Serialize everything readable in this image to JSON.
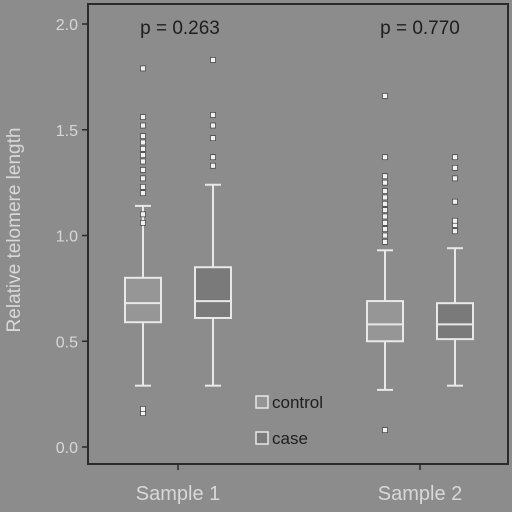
{
  "chart_data": {
    "type": "box",
    "ylabel": "Relative telomere length",
    "ylim": [
      0.0,
      2.0
    ],
    "yticks": [
      "0.0",
      "0.5",
      "1.0",
      "1.5",
      "2.0"
    ],
    "categories": [
      "Sample 1",
      "Sample 2"
    ],
    "annotations": [
      "p = 0.263",
      "p = 0.770"
    ],
    "legend": {
      "position": "bottom-center",
      "entries": [
        "control",
        "case"
      ]
    },
    "colors": {
      "background": "#8c8c8c",
      "control": "#969696",
      "case": "#7a7a7a",
      "stroke": "#e8e8e8"
    },
    "series": [
      {
        "name": "control",
        "boxes": [
          {
            "category": "Sample 1",
            "whisker_low": 0.29,
            "q1": 0.59,
            "median": 0.68,
            "q3": 0.8,
            "whisker_high": 1.14,
            "outliers": [
              0.16,
              0.18,
              1.06,
              1.1,
              1.2,
              1.23,
              1.27,
              1.31,
              1.35,
              1.38,
              1.41,
              1.44,
              1.47,
              1.52,
              1.56,
              1.79
            ]
          },
          {
            "category": "Sample 2",
            "whisker_low": 0.27,
            "q1": 0.5,
            "median": 0.58,
            "q3": 0.69,
            "whisker_high": 0.93,
            "outliers": [
              0.08,
              0.97,
              1.0,
              1.03,
              1.06,
              1.09,
              1.12,
              1.15,
              1.18,
              1.21,
              1.25,
              1.28,
              1.37,
              1.66
            ]
          }
        ]
      },
      {
        "name": "case",
        "boxes": [
          {
            "category": "Sample 1",
            "whisker_low": 0.29,
            "q1": 0.61,
            "median": 0.69,
            "q3": 0.85,
            "whisker_high": 1.24,
            "outliers": [
              1.33,
              1.37,
              1.46,
              1.52,
              1.57,
              1.83
            ]
          },
          {
            "category": "Sample 2",
            "whisker_low": 0.29,
            "q1": 0.51,
            "median": 0.58,
            "q3": 0.68,
            "whisker_high": 0.94,
            "outliers": [
              1.02,
              1.05,
              1.07,
              1.16,
              1.27,
              1.32,
              1.37
            ]
          }
        ]
      }
    ]
  }
}
